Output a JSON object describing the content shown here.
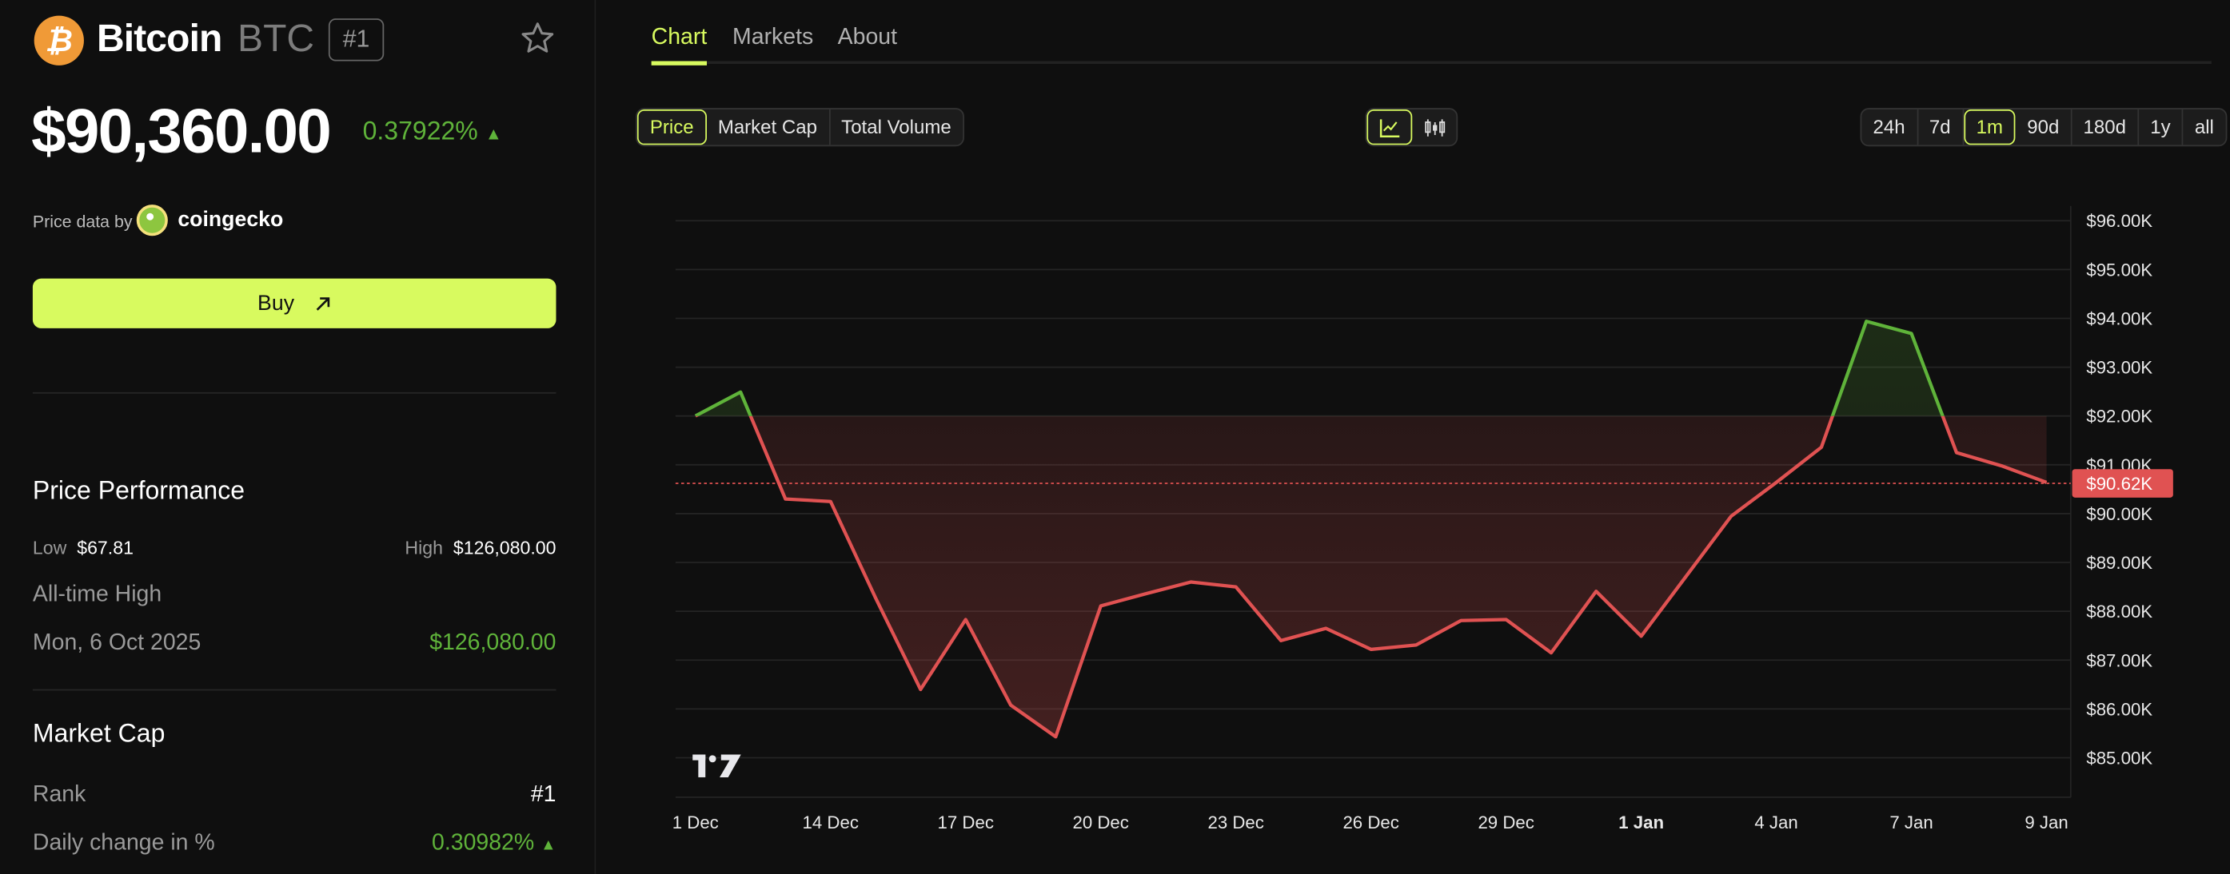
{
  "coin": {
    "name": "Bitcoin",
    "symbol": "BTC",
    "rank_badge": "#1",
    "price": "$90,360.00",
    "change": "0.37922%",
    "change_arrow": "▲",
    "icon": "bitcoin-icon",
    "favorite_icon": "star-icon"
  },
  "price_source": {
    "label": "Price data by",
    "provider": "coingecko"
  },
  "buy_button": {
    "label": "Buy",
    "icon": "arrow-up-right-icon"
  },
  "performance": {
    "title": "Price Performance",
    "low_label": "Low",
    "low_value": "$67.81",
    "high_label": "High",
    "high_value": "$126,080.00",
    "ath_label": "All-time High",
    "ath_date": "Mon, 6 Oct 2025",
    "ath_value": "$126,080.00"
  },
  "market_cap": {
    "title": "Market Cap",
    "rank_label": "Rank",
    "rank_value": "#1",
    "daily_change_label": "Daily change in %",
    "daily_change_value": "0.30982%",
    "daily_change_arrow": "▲"
  },
  "tabs": [
    {
      "label": "Chart",
      "active": true
    },
    {
      "label": "Markets"
    },
    {
      "label": "About"
    }
  ],
  "metric_buttons": [
    {
      "label": "Price",
      "active": true
    },
    {
      "label": "Market Cap"
    },
    {
      "label": "Total Volume"
    }
  ],
  "chart_type_buttons": [
    {
      "icon": "line-chart-icon",
      "active": true
    },
    {
      "icon": "candlestick-icon"
    }
  ],
  "range_buttons": [
    {
      "label": "24h"
    },
    {
      "label": "7d"
    },
    {
      "label": "1m",
      "active": true
    },
    {
      "label": "90d"
    },
    {
      "label": "180d"
    },
    {
      "label": "1y"
    },
    {
      "label": "all"
    }
  ],
  "colors": {
    "accent": "#d8fa5f",
    "up": "#5fb33a",
    "down": "#e05252",
    "background": "#0f0f0f"
  },
  "chart_data": {
    "type": "line",
    "baseline": 92.0,
    "current_label": "$90.62K",
    "current_value": 90.62,
    "ylim": [
      85,
      96
    ],
    "yticks": [
      "$96.00K",
      "$95.00K",
      "$94.00K",
      "$93.00K",
      "$92.00K",
      "$91.00K",
      "$90.00K",
      "$89.00K",
      "$88.00K",
      "$87.00K",
      "$86.00K",
      "$85.00K"
    ],
    "ytick_values": [
      96,
      95,
      94,
      93,
      92,
      91,
      90,
      89,
      88,
      87,
      86,
      85
    ],
    "xticks": [
      {
        "label": "1 Dec",
        "index": 0
      },
      {
        "label": "14 Dec",
        "index": 3
      },
      {
        "label": "17 Dec",
        "index": 6
      },
      {
        "label": "20 Dec",
        "index": 9
      },
      {
        "label": "23 Dec",
        "index": 12
      },
      {
        "label": "26 Dec",
        "index": 15
      },
      {
        "label": "29 Dec",
        "index": 18
      },
      {
        "label": "1 Jan",
        "index": 21,
        "bold": true
      },
      {
        "label": "4 Jan",
        "index": 24
      },
      {
        "label": "7 Jan",
        "index": 27
      },
      {
        "label": "9 Jan",
        "index": 30
      }
    ],
    "values_k": [
      92.0,
      92.49,
      90.3,
      90.25,
      88.27,
      86.4,
      87.83,
      86.08,
      85.43,
      88.11,
      88.36,
      88.6,
      88.5,
      87.4,
      87.65,
      87.22,
      87.31,
      87.81,
      87.83,
      87.15,
      88.41,
      87.49,
      88.72,
      89.95,
      90.64,
      91.36,
      93.94,
      93.69,
      91.25,
      90.98,
      90.64
    ],
    "unit": "USD thousands",
    "grid": true
  }
}
